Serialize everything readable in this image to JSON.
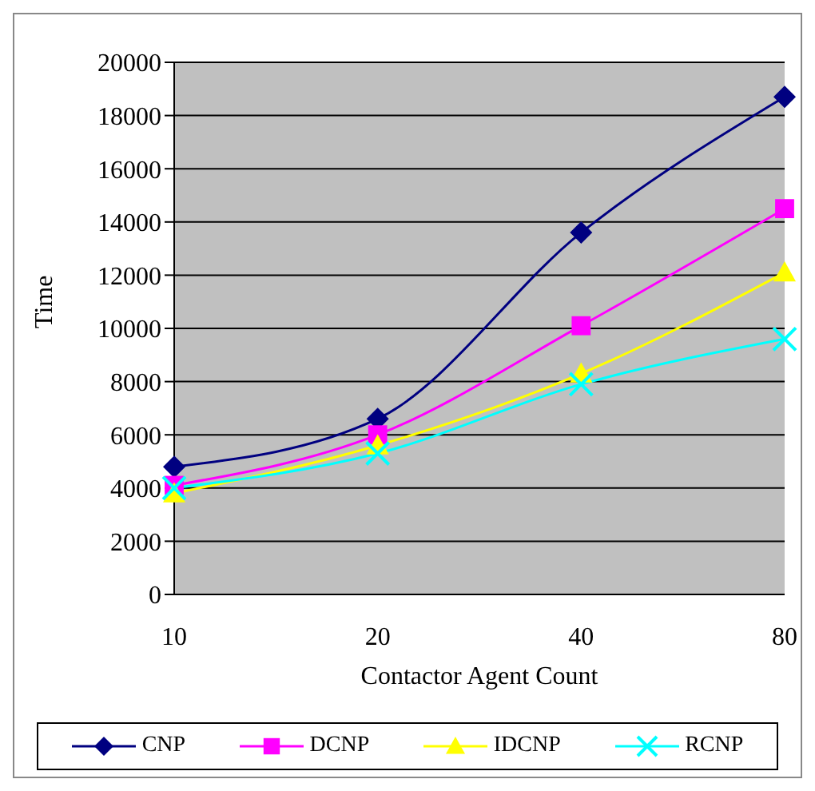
{
  "chart_data": {
    "type": "line",
    "xlabel": "Contactor Agent Count",
    "ylabel": "Time",
    "categories": [
      "10",
      "20",
      "40",
      "80"
    ],
    "series": [
      {
        "name": "CNP",
        "color": "#000080",
        "marker": "diamond",
        "values": [
          4800,
          6600,
          13600,
          18700
        ]
      },
      {
        "name": "DCNP",
        "color": "#ff00ff",
        "marker": "square",
        "values": [
          4100,
          6000,
          10100,
          14500
        ]
      },
      {
        "name": "IDCNP",
        "color": "#ffff00",
        "marker": "triangle",
        "values": [
          3800,
          5600,
          8300,
          12100
        ]
      },
      {
        "name": "RCNP",
        "color": "#00ffff",
        "marker": "cross",
        "values": [
          4000,
          5300,
          7900,
          9600
        ]
      }
    ],
    "ylim": [
      0,
      20000
    ],
    "yticks": [
      0,
      2000,
      4000,
      6000,
      8000,
      10000,
      12000,
      14000,
      16000,
      18000,
      20000
    ],
    "grid": "y",
    "legend": "bottom",
    "line_style": "solid"
  }
}
